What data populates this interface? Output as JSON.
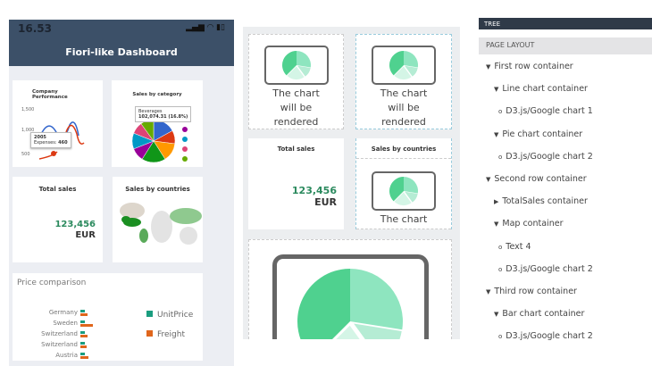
{
  "phone": {
    "time": "16.53",
    "status_icons": "signal wifi battery",
    "title": "Fiori-like Dashboard",
    "company_performance": {
      "title": "Company Performance",
      "y_ticks": [
        "1,500",
        "1,000",
        "500"
      ],
      "tooltip_year": "2005",
      "tooltip_label": "Expenses:",
      "tooltip_value": "460"
    },
    "sales_by_category": {
      "title": "Sales by category",
      "tooltip_name": "Beverages",
      "tooltip_value": "102,074.31 (16.8%)",
      "colors": [
        "#3366cc",
        "#dc3912",
        "#ff9900",
        "#109618",
        "#990099",
        "#0099c6",
        "#dd4477",
        "#66aa00"
      ]
    },
    "total_sales": {
      "title": "Total sales",
      "value": "123,456",
      "unit": "EUR"
    },
    "sales_by_countries": {
      "title": "Sales by countries"
    },
    "price_comparison": {
      "title": "Price comparison",
      "countries": [
        "Germany",
        "Sweden",
        "Switzerland",
        "Switzerland",
        "Austria"
      ],
      "legend": [
        {
          "label": "UnitPrice",
          "color": "#1a9d7f"
        },
        {
          "label": "Freight",
          "color": "#e0661c"
        }
      ]
    }
  },
  "layout": {
    "placeholder": [
      "The chart",
      "will be",
      "rendered"
    ],
    "total_sales_title": "Total sales",
    "total_sales_value": "123,456",
    "total_sales_unit": "EUR",
    "countries_title": "Sales by countries",
    "placeholder_partial": "The chart"
  },
  "tree": {
    "header": "TREE",
    "section": "PAGE LAYOUT",
    "items": [
      {
        "label": "First row container",
        "marker": "▼"
      },
      {
        "label": "Line chart container",
        "marker": "▼"
      },
      {
        "label": "D3.js/Google chart 1",
        "marker": "o"
      },
      {
        "label": "Pie chart container",
        "marker": "▼"
      },
      {
        "label": "D3.js/Google chart 2",
        "marker": "o"
      },
      {
        "label": "Second row container",
        "marker": "▼"
      },
      {
        "label": "TotalSales container",
        "marker": "▶"
      },
      {
        "label": "Map container",
        "marker": "▼"
      },
      {
        "label": "Text 4",
        "marker": "o"
      },
      {
        "label": "D3.js/Google chart 2",
        "marker": "o"
      },
      {
        "label": "Third row container",
        "marker": "▼"
      },
      {
        "label": "Bar chart container",
        "marker": "▼"
      },
      {
        "label": "D3.js/Google chart 2",
        "marker": "o"
      }
    ]
  }
}
